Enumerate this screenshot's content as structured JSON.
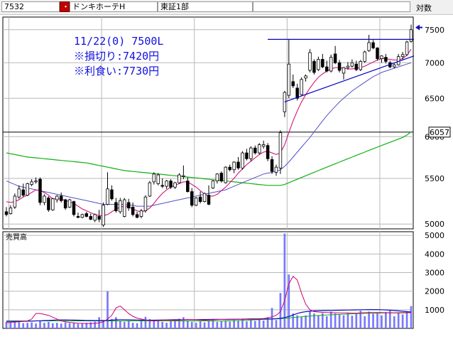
{
  "header": {
    "code": "7532",
    "dot": "・",
    "name": "ドンキホーテH",
    "market": "東証1部",
    "scale_mode": "対数"
  },
  "annotation": {
    "line1": "11/22(0) 7500L",
    "line2": "※損切り:7420円",
    "line3": "※利食い:7730円"
  },
  "colors": {
    "up_candle": "#ffffff",
    "down_candle": "#000000",
    "ma_short": "#d0006f",
    "ma_mid": "#5050c8",
    "ma_long": "#10b010",
    "trendline": "#0000c0",
    "volume": "#7878ff",
    "annotation": "#1010e0",
    "header_red": "#c00000"
  },
  "chart_data": [
    {
      "type": "candlestick",
      "title": "ドンキホーテH",
      "scale": "log",
      "ylim": [
        4950,
        7700
      ],
      "yticks": [
        5000,
        5500,
        6000,
        6500,
        7000,
        7500
      ],
      "current_price_label": "6057",
      "grid": true,
      "indicators": [
        "ma_short",
        "ma_mid",
        "ma_long"
      ],
      "candles": [
        [
          5130,
          5180,
          5080,
          5100
        ],
        [
          5110,
          5200,
          5100,
          5170
        ],
        [
          5180,
          5330,
          5160,
          5300
        ],
        [
          5290,
          5420,
          5270,
          5380
        ],
        [
          5370,
          5440,
          5290,
          5310
        ],
        [
          5310,
          5450,
          5300,
          5440
        ],
        [
          5430,
          5490,
          5410,
          5460
        ],
        [
          5460,
          5510,
          5440,
          5470
        ],
        [
          5490,
          5510,
          5200,
          5230
        ],
        [
          5230,
          5320,
          5200,
          5300
        ],
        [
          5280,
          5300,
          5130,
          5150
        ],
        [
          5150,
          5280,
          5140,
          5270
        ],
        [
          5260,
          5310,
          5230,
          5300
        ],
        [
          5300,
          5340,
          5230,
          5250
        ],
        [
          5260,
          5270,
          5150,
          5170
        ],
        [
          5180,
          5270,
          5170,
          5260
        ],
        [
          5240,
          5250,
          5080,
          5100
        ],
        [
          5080,
          5120,
          5060,
          5070
        ],
        [
          5070,
          5110,
          5060,
          5100
        ],
        [
          5110,
          5130,
          5070,
          5080
        ],
        [
          5080,
          5110,
          5040,
          5050
        ],
        [
          5040,
          5110,
          5020,
          5100
        ],
        [
          5080,
          5150,
          5020,
          5050
        ],
        [
          4990,
          5230,
          4970,
          5200
        ],
        [
          5210,
          5570,
          5200,
          5380
        ],
        [
          5370,
          5420,
          5250,
          5270
        ],
        [
          5230,
          5280,
          5120,
          5140
        ],
        [
          5130,
          5280,
          5110,
          5250
        ],
        [
          5080,
          5280,
          5070,
          5260
        ],
        [
          5230,
          5270,
          5140,
          5170
        ],
        [
          5180,
          5230,
          5080,
          5100
        ],
        [
          5100,
          5130,
          5060,
          5070
        ],
        [
          5080,
          5160,
          5060,
          5140
        ],
        [
          5140,
          5310,
          5120,
          5290
        ],
        [
          5300,
          5470,
          5290,
          5450
        ],
        [
          5460,
          5570,
          5430,
          5550
        ],
        [
          5440,
          5560,
          5420,
          5540
        ],
        [
          5420,
          5500,
          5390,
          5410
        ],
        [
          5410,
          5480,
          5380,
          5470
        ],
        [
          5470,
          5490,
          5380,
          5400
        ],
        [
          5400,
          5460,
          5380,
          5450
        ],
        [
          5450,
          5560,
          5440,
          5540
        ],
        [
          5520,
          5650,
          5490,
          5530
        ],
        [
          5470,
          5510,
          5340,
          5350
        ],
        [
          5350,
          5390,
          5180,
          5200
        ],
        [
          5200,
          5290,
          5190,
          5280
        ],
        [
          5290,
          5350,
          5220,
          5240
        ],
        [
          5240,
          5340,
          5230,
          5330
        ],
        [
          5310,
          5420,
          5200,
          5210
        ],
        [
          5390,
          5480,
          5380,
          5470
        ],
        [
          5470,
          5560,
          5440,
          5550
        ],
        [
          5560,
          5580,
          5450,
          5470
        ],
        [
          5450,
          5640,
          5440,
          5630
        ],
        [
          5630,
          5660,
          5580,
          5600
        ],
        [
          5600,
          5700,
          5560,
          5690
        ],
        [
          5690,
          5750,
          5600,
          5620
        ],
        [
          5620,
          5820,
          5600,
          5800
        ],
        [
          5800,
          5850,
          5710,
          5730
        ],
        [
          5730,
          5880,
          5700,
          5860
        ],
        [
          5860,
          5890,
          5780,
          5800
        ],
        [
          5800,
          5920,
          5780,
          5900
        ],
        [
          5880,
          5950,
          5850,
          5900
        ],
        [
          5890,
          5920,
          5700,
          5730
        ],
        [
          5720,
          5760,
          5550,
          5580
        ],
        [
          5570,
          5660,
          5530,
          5630
        ],
        [
          5620,
          6080,
          5550,
          6050
        ],
        [
          6320,
          6600,
          6250,
          6580
        ],
        [
          6540,
          7350,
          6500,
          6980
        ],
        [
          6730,
          6830,
          6640,
          6670
        ],
        [
          6640,
          6700,
          6470,
          6500
        ],
        [
          6550,
          6790,
          6540,
          6760
        ],
        [
          6780,
          6830,
          6730,
          6810
        ],
        [
          6890,
          7200,
          6860,
          7150
        ],
        [
          7020,
          7050,
          6830,
          6860
        ],
        [
          6900,
          7090,
          6880,
          7050
        ],
        [
          7050,
          7130,
          6920,
          6940
        ],
        [
          6940,
          7030,
          6860,
          6880
        ],
        [
          6880,
          7120,
          6860,
          7080
        ],
        [
          7130,
          7250,
          6980,
          7000
        ],
        [
          7000,
          7040,
          6860,
          6890
        ],
        [
          6850,
          6940,
          6760,
          6930
        ],
        [
          6930,
          7010,
          6900,
          6950
        ],
        [
          6950,
          7050,
          6930,
          7000
        ],
        [
          6980,
          7030,
          6880,
          6900
        ],
        [
          6900,
          7040,
          6880,
          7020
        ],
        [
          7020,
          7180,
          7000,
          7160
        ],
        [
          7180,
          7420,
          7160,
          7300
        ],
        [
          7300,
          7340,
          7200,
          7220
        ],
        [
          7220,
          7230,
          7030,
          7060
        ],
        [
          7060,
          7110,
          7000,
          7100
        ],
        [
          7080,
          7130,
          6990,
          7020
        ],
        [
          7000,
          7030,
          6920,
          6940
        ],
        [
          6940,
          6990,
          6920,
          6970
        ],
        [
          6970,
          7130,
          6960,
          7090
        ],
        [
          7090,
          7160,
          7050,
          7120
        ],
        [
          7120,
          7330,
          7100,
          7310
        ],
        [
          7320,
          7580,
          7300,
          7500
        ]
      ],
      "ma_short": [
        5240,
        5230,
        5240,
        5260,
        5290,
        5310,
        5340,
        5370,
        5360,
        5340,
        5310,
        5270,
        5270,
        5270,
        5250,
        5240,
        5220,
        5190,
        5160,
        5140,
        5120,
        5100,
        5090,
        5090,
        5100,
        5130,
        5160,
        5180,
        5190,
        5180,
        5160,
        5140,
        5130,
        5140,
        5170,
        5220,
        5280,
        5330,
        5370,
        5400,
        5420,
        5440,
        5460,
        5460,
        5430,
        5400,
        5360,
        5320,
        5300,
        5300,
        5320,
        5360,
        5400,
        5450,
        5500,
        5560,
        5610,
        5660,
        5700,
        5740,
        5780,
        5810,
        5820,
        5800,
        5780,
        5800,
        5900,
        6050,
        6200,
        6330,
        6450,
        6550,
        6640,
        6720,
        6790,
        6840,
        6880,
        6910,
        6930,
        6930,
        6920,
        6910,
        6910,
        6920,
        6930,
        6950,
        6980,
        7010,
        7040,
        7060,
        7060,
        7050,
        7040,
        7040,
        7060,
        7110,
        7200
      ],
      "ma_mid": [
        5470,
        5450,
        5430,
        5410,
        5400,
        5390,
        5380,
        5370,
        5360,
        5350,
        5340,
        5330,
        5320,
        5310,
        5300,
        5290,
        5280,
        5270,
        5260,
        5250,
        5240,
        5230,
        5220,
        5210,
        5210,
        5210,
        5210,
        5210,
        5210,
        5200,
        5200,
        5190,
        5190,
        5190,
        5190,
        5200,
        5210,
        5220,
        5230,
        5240,
        5250,
        5260,
        5270,
        5280,
        5290,
        5300,
        5310,
        5320,
        5330,
        5340,
        5350,
        5360,
        5370,
        5390,
        5410,
        5430,
        5450,
        5470,
        5490,
        5510,
        5530,
        5550,
        5560,
        5570,
        5580,
        5600,
        5640,
        5690,
        5750,
        5810,
        5870,
        5930,
        5990,
        6060,
        6130,
        6200,
        6270,
        6330,
        6390,
        6450,
        6500,
        6550,
        6600,
        6640,
        6680,
        6720,
        6760,
        6800,
        6830,
        6860,
        6880,
        6900,
        6920,
        6940,
        6960,
        6980,
        7000
      ],
      "ma_long": [
        5800,
        5790,
        5780,
        5770,
        5760,
        5750,
        5745,
        5740,
        5735,
        5730,
        5725,
        5720,
        5715,
        5710,
        5705,
        5700,
        5695,
        5690,
        5685,
        5680,
        5670,
        5660,
        5650,
        5640,
        5630,
        5620,
        5610,
        5600,
        5590,
        5585,
        5580,
        5575,
        5570,
        5565,
        5560,
        5555,
        5550,
        5545,
        5540,
        5535,
        5530,
        5525,
        5520,
        5515,
        5510,
        5505,
        5500,
        5495,
        5490,
        5485,
        5480,
        5475,
        5470,
        5465,
        5460,
        5455,
        5450,
        5445,
        5440,
        5435,
        5430,
        5425,
        5420,
        5420,
        5420,
        5420,
        5430,
        5450,
        5470,
        5490,
        5510,
        5530,
        5550,
        5570,
        5590,
        5610,
        5630,
        5650,
        5670,
        5690,
        5710,
        5730,
        5750,
        5770,
        5790,
        5810,
        5830,
        5850,
        5870,
        5890,
        5910,
        5930,
        5950,
        5970,
        5990,
        6020,
        6060
      ],
      "trendlines": [
        {
          "from": [
            63,
            7350
          ],
          "to": [
            96,
            7350
          ]
        },
        {
          "from": [
            67,
            6450
          ],
          "to": [
            96,
            7100
          ]
        }
      ]
    },
    {
      "type": "bar",
      "title": "売買高",
      "ylim": [
        0,
        5200
      ],
      "yticks": [
        1000,
        2000,
        3000,
        4000,
        5000
      ],
      "volume": [
        350,
        300,
        380,
        420,
        280,
        300,
        320,
        260,
        400,
        300,
        350,
        280,
        300,
        260,
        320,
        280,
        300,
        250,
        280,
        300,
        330,
        360,
        600,
        450,
        2000,
        500,
        600,
        380,
        350,
        400,
        300,
        280,
        450,
        620,
        500,
        420,
        380,
        350,
        300,
        420,
        380,
        520,
        600,
        400,
        350,
        300,
        380,
        320,
        420,
        500,
        350,
        380,
        420,
        360,
        480,
        400,
        520,
        380,
        450,
        400,
        500,
        420,
        600,
        1100,
        450,
        1900,
        5100,
        2900,
        800,
        700,
        600,
        700,
        900,
        800,
        700,
        820,
        650,
        900,
        800,
        750,
        700,
        820,
        680,
        780,
        950,
        650,
        900,
        780,
        850,
        700,
        880,
        950,
        650,
        820,
        750,
        900,
        1200
      ],
      "vol_ma_pink": [
        300,
        320,
        340,
        360,
        380,
        400,
        500,
        800,
        800,
        750,
        700,
        600,
        500,
        400,
        350,
        320,
        300,
        280,
        270,
        260,
        260,
        270,
        300,
        350,
        500,
        700,
        1100,
        1200,
        1000,
        800,
        650,
        550,
        500,
        450,
        420,
        400,
        420,
        440,
        450,
        440,
        430,
        440,
        460,
        480,
        470,
        460,
        450,
        440,
        450,
        460,
        470,
        480,
        470,
        470,
        480,
        490,
        500,
        510,
        520,
        520,
        520,
        530,
        560,
        620,
        700,
        900,
        1500,
        2400,
        2800,
        2600,
        1900,
        1300,
        1000,
        900,
        880,
        860,
        850,
        840,
        840,
        830,
        830,
        830,
        820,
        820,
        830,
        840,
        850,
        850,
        850,
        850,
        840,
        840,
        830,
        830,
        830,
        840,
        850
      ],
      "vol_ma_blue": [
        380,
        380,
        380,
        380,
        380,
        385,
        390,
        400,
        410,
        420,
        430,
        440,
        450,
        455,
        455,
        450,
        445,
        440,
        435,
        430,
        425,
        420,
        420,
        420,
        430,
        445,
        460,
        465,
        465,
        460,
        455,
        450,
        445,
        440,
        440,
        440,
        445,
        450,
        455,
        460,
        462,
        464,
        466,
        468,
        470,
        472,
        474,
        476,
        478,
        480,
        482,
        484,
        486,
        488,
        490,
        492,
        494,
        496,
        498,
        500,
        502,
        504,
        506,
        510,
        520,
        540,
        580,
        640,
        720,
        800,
        860,
        900,
        920,
        940,
        950,
        955,
        960,
        965,
        970,
        975,
        980,
        985,
        990,
        995,
        1000,
        1005,
        1010,
        1010,
        1010,
        1000,
        990,
        980,
        960,
        940,
        920,
        900,
        880
      ],
      "vol_ma_green": [
        400,
        400,
        400,
        400,
        400,
        400,
        400,
        400,
        400,
        400,
        400,
        400,
        400,
        400,
        400,
        400,
        400,
        400,
        400,
        400,
        400,
        400,
        400,
        400,
        400,
        400,
        400,
        400,
        400,
        400,
        400,
        400,
        400,
        400,
        400,
        400,
        400,
        400,
        400,
        400,
        400,
        400,
        400,
        400,
        400,
        400,
        400,
        400,
        400,
        400,
        400,
        400,
        400,
        400,
        410,
        420,
        430,
        440,
        450,
        460,
        470,
        480,
        490,
        500,
        510,
        520,
        540,
        560,
        580,
        600,
        620,
        640,
        660,
        680,
        700,
        710,
        720,
        730,
        740,
        750,
        760,
        770,
        780,
        790,
        800,
        805,
        810,
        815,
        820,
        825,
        830,
        835,
        840,
        845,
        850,
        855,
        860
      ]
    }
  ]
}
